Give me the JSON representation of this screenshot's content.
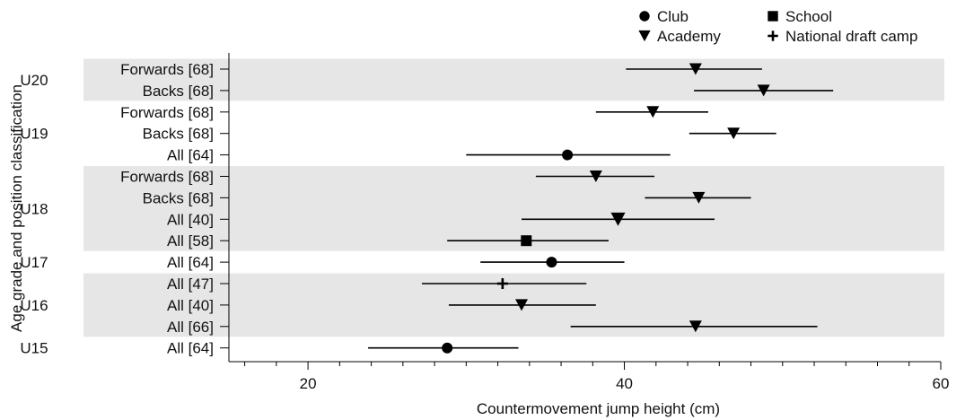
{
  "chart_data": {
    "type": "forest",
    "xlabel": "Countermovement jump height (cm)",
    "ylabel": "Age grade and position classification",
    "xlim": [
      15,
      60
    ],
    "xticks": [
      20,
      40,
      60
    ],
    "grid": false,
    "legend_position": "top-right",
    "legend": [
      {
        "name": "Club",
        "marker": "circle"
      },
      {
        "name": "School",
        "marker": "square"
      },
      {
        "name": "Academy",
        "marker": "triangle-down"
      },
      {
        "name": "National draft camp",
        "marker": "plus"
      }
    ],
    "groups": [
      {
        "name": "U20",
        "shaded": true,
        "rows": [
          {
            "label": "Forwards [68]",
            "marker": "triangle-down",
            "mean": 44.5,
            "lo": 40.1,
            "hi": 48.7
          },
          {
            "label": "Backs [68]",
            "marker": "triangle-down",
            "mean": 48.8,
            "lo": 44.4,
            "hi": 53.2
          }
        ]
      },
      {
        "name": "U19",
        "shaded": false,
        "rows": [
          {
            "label": "Forwards [68]",
            "marker": "triangle-down",
            "mean": 41.8,
            "lo": 38.2,
            "hi": 45.3
          },
          {
            "label": "Backs [68]",
            "marker": "triangle-down",
            "mean": 46.9,
            "lo": 44.1,
            "hi": 49.6
          },
          {
            "label": "All [64]",
            "marker": "circle",
            "mean": 36.4,
            "lo": 30.0,
            "hi": 42.9
          }
        ]
      },
      {
        "name": "U18",
        "shaded": true,
        "rows": [
          {
            "label": "Forwards [68]",
            "marker": "triangle-down",
            "mean": 38.2,
            "lo": 34.4,
            "hi": 41.9
          },
          {
            "label": "Backs [68]",
            "marker": "triangle-down",
            "mean": 44.7,
            "lo": 41.3,
            "hi": 48.0
          },
          {
            "label": "All [40]",
            "marker": "triangle-down",
            "mean": 39.6,
            "lo": 33.5,
            "hi": 45.7
          },
          {
            "label": "All [58]",
            "marker": "square",
            "mean": 33.8,
            "lo": 28.8,
            "hi": 39.0
          }
        ]
      },
      {
        "name": "U17",
        "shaded": false,
        "rows": [
          {
            "label": "All [64]",
            "marker": "circle",
            "mean": 35.4,
            "lo": 30.9,
            "hi": 40.0
          }
        ]
      },
      {
        "name": "U16",
        "shaded": true,
        "rows": [
          {
            "label": "All [47]",
            "marker": "plus",
            "mean": 32.3,
            "lo": 27.2,
            "hi": 37.6
          },
          {
            "label": "All [40]",
            "marker": "triangle-down",
            "mean": 33.5,
            "lo": 28.9,
            "hi": 38.2
          },
          {
            "label": "All [66]",
            "marker": "triangle-down",
            "mean": 44.5,
            "lo": 36.6,
            "hi": 52.2
          }
        ]
      },
      {
        "name": "U15",
        "shaded": false,
        "rows": [
          {
            "label": "All [64]",
            "marker": "circle",
            "mean": 28.8,
            "lo": 23.8,
            "hi": 33.3
          }
        ]
      }
    ]
  }
}
